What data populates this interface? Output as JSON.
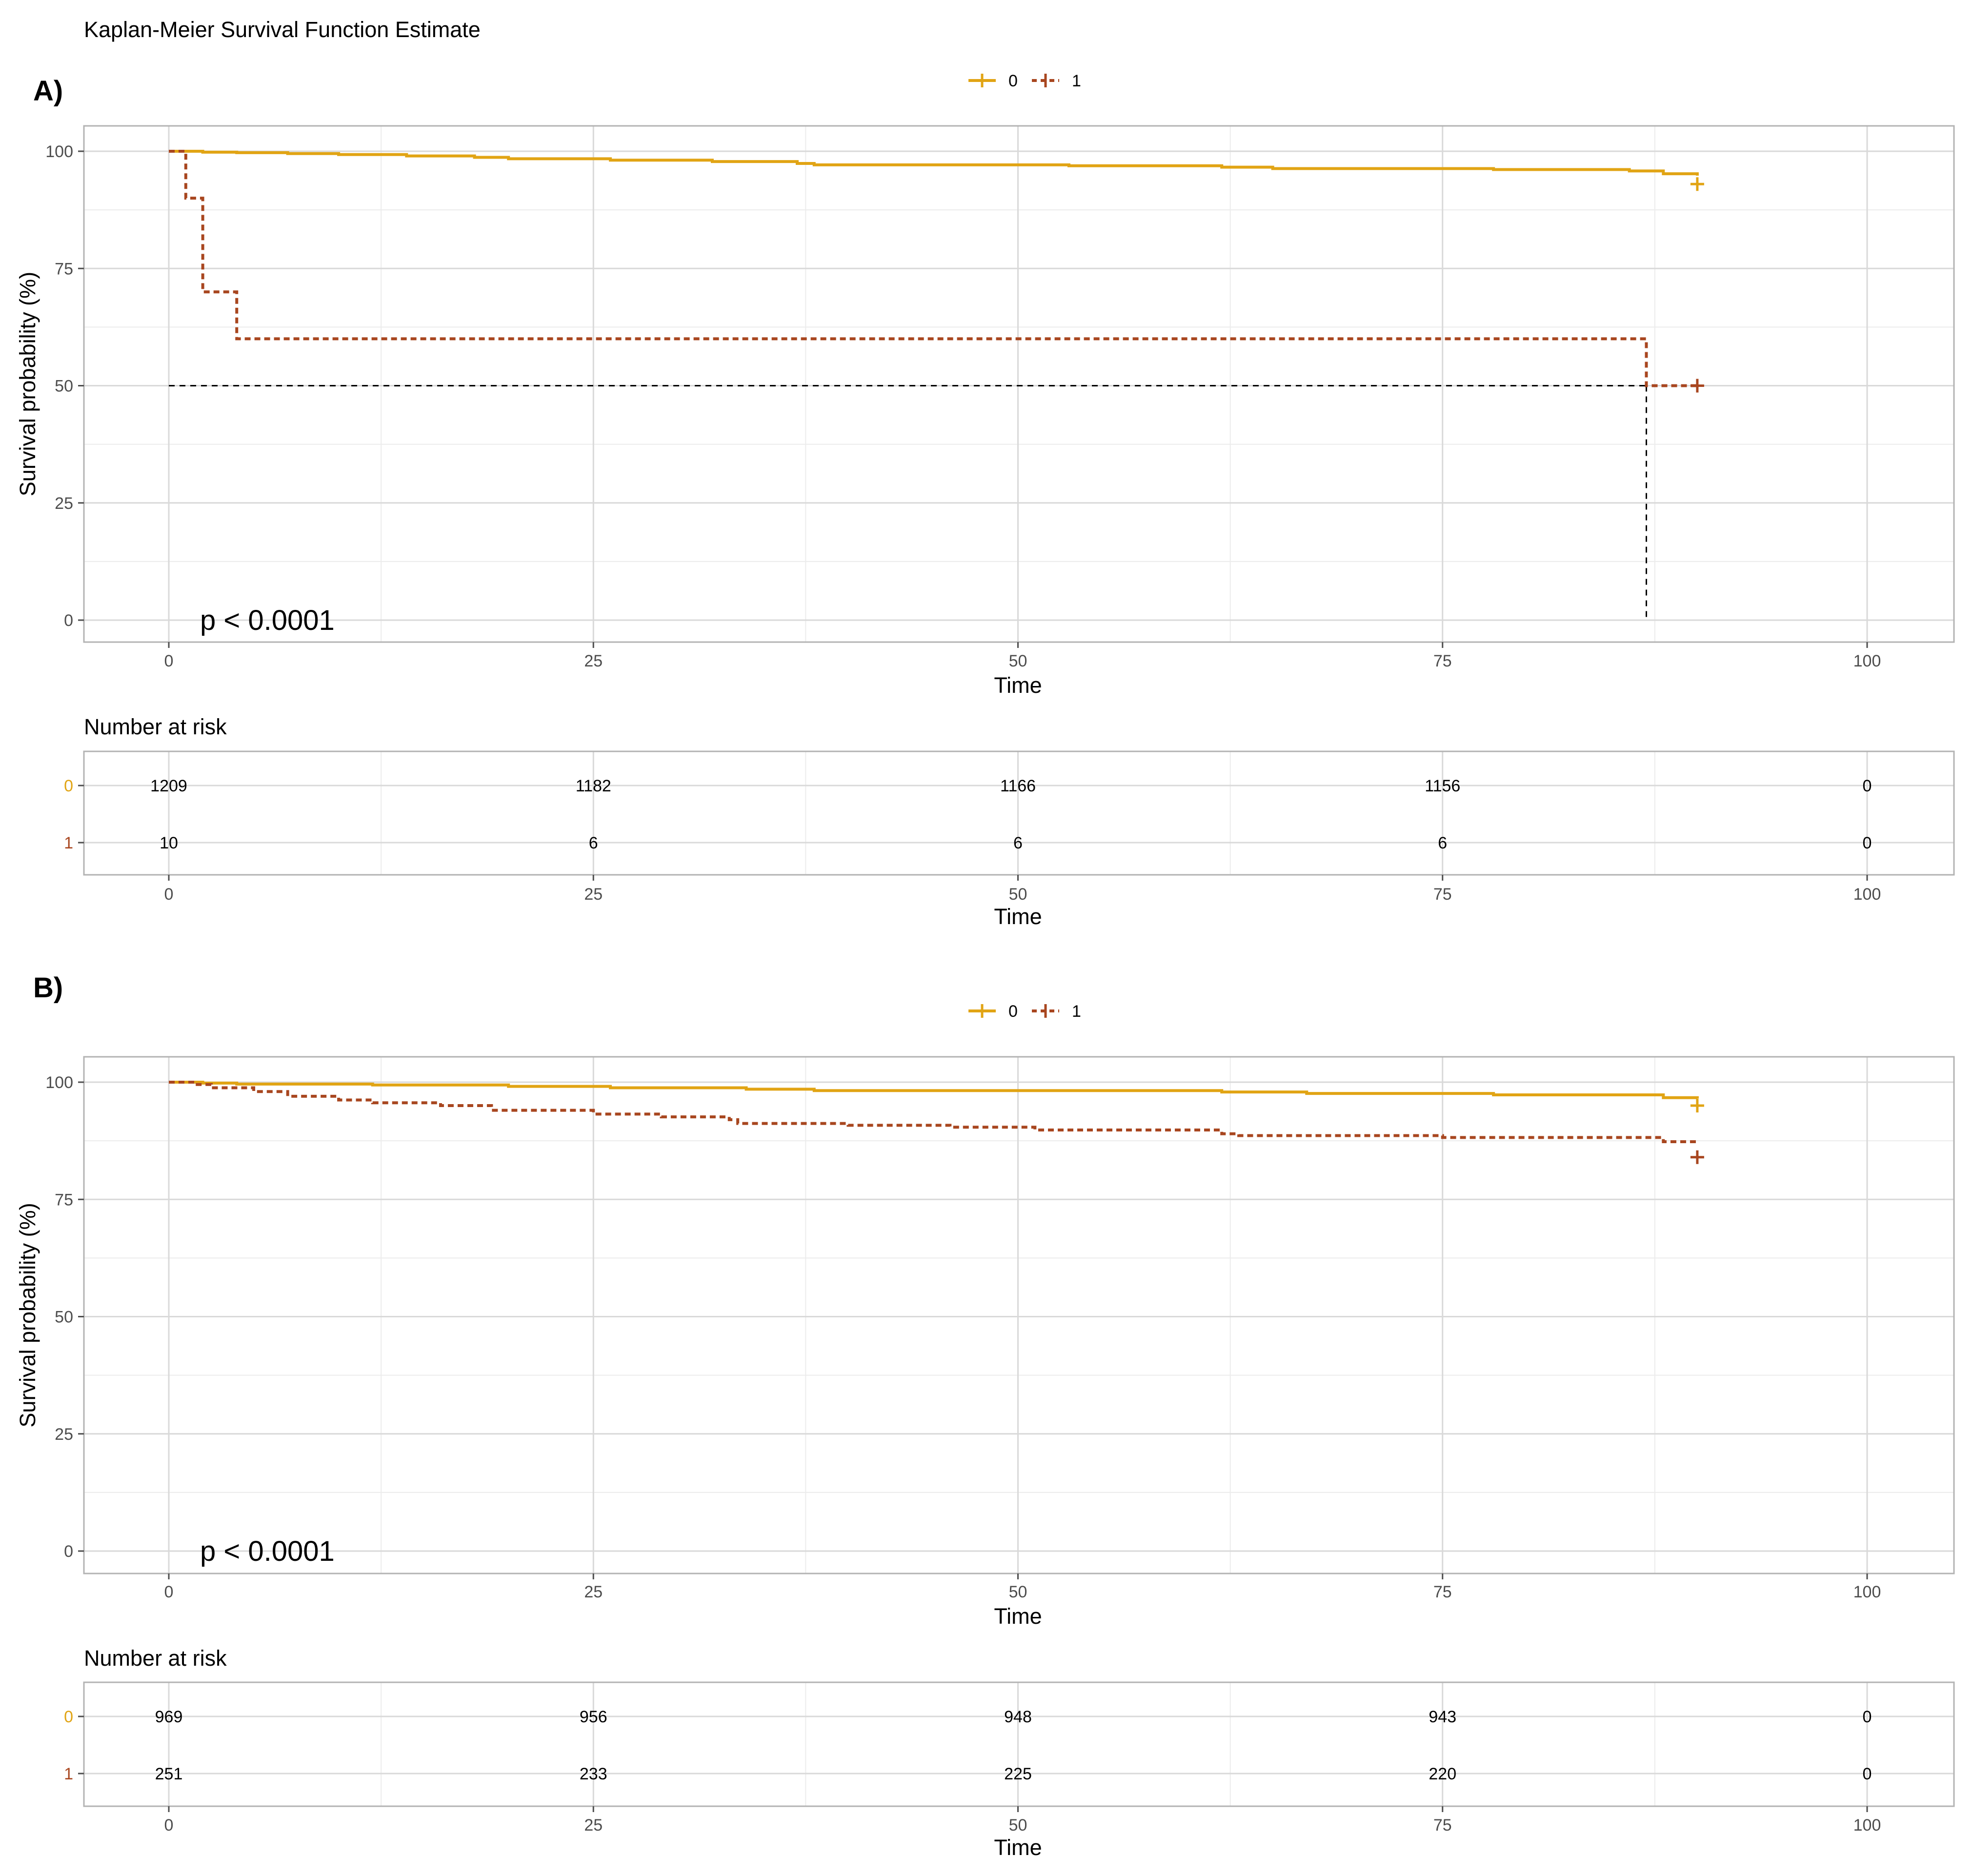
{
  "figure_title": "Kaplan-Meier Survival Function Estimate",
  "colors": {
    "stratum_0": "#E1A414",
    "stratum_1": "#A8461F",
    "median_line": "#000000"
  },
  "chart_data": [
    {
      "type": "line",
      "panel_label": "A)",
      "title": "Kaplan-Meier Survival Function Estimate",
      "xlabel": "Time",
      "ylabel": "Survival probability (%)",
      "xlim": [
        0,
        100
      ],
      "ylim": [
        0,
        100
      ],
      "x_ticks": [
        "0",
        "25",
        "50",
        "75",
        "100"
      ],
      "y_ticks": [
        "0",
        "25",
        "50",
        "75",
        "100"
      ],
      "grid": true,
      "legend": {
        "position": "top",
        "entries": [
          "0",
          "1"
        ]
      },
      "p_value": "p < 0.0001",
      "series": [
        {
          "name": "0",
          "color": "#E1A414",
          "line_style": "solid",
          "steps": [
            [
              0,
              100
            ],
            [
              1,
              100
            ],
            [
              2,
              99.8
            ],
            [
              4,
              99.7
            ],
            [
              7,
              99.5
            ],
            [
              10,
              99.3
            ],
            [
              14,
              99
            ],
            [
              18,
              98.7
            ],
            [
              20,
              98.4
            ],
            [
              26,
              98.1
            ],
            [
              32,
              97.8
            ],
            [
              37,
              97.4
            ],
            [
              38,
              97.1
            ],
            [
              53,
              96.9
            ],
            [
              62,
              96.6
            ],
            [
              65,
              96.3
            ],
            [
              78,
              96.1
            ],
            [
              86,
              95.8
            ],
            [
              88,
              95.2
            ],
            [
              90,
              94.8
            ]
          ],
          "censor_marks": [
            [
              90,
              93
            ]
          ]
        },
        {
          "name": "1",
          "color": "#A8461F",
          "line_style": "dashed",
          "steps": [
            [
              0,
              100
            ],
            [
              1,
              90
            ],
            [
              2,
              70
            ],
            [
              4,
              60
            ],
            [
              87,
              50
            ],
            [
              90,
              50
            ]
          ],
          "censor_marks": [
            [
              90,
              50
            ]
          ]
        }
      ],
      "median_survival": {
        "y": 50,
        "x_start": 0,
        "x_end": 87
      },
      "risk_table": {
        "title": "Number at risk",
        "xlabel": "Time",
        "strata": [
          "0",
          "1"
        ],
        "times": [
          0,
          25,
          50,
          75,
          100
        ],
        "rows": [
          {
            "stratum": "0",
            "values": [
              "1209",
              "1182",
              "1166",
              "1156",
              "0"
            ]
          },
          {
            "stratum": "1",
            "values": [
              "10",
              "6",
              "6",
              "6",
              "0"
            ]
          }
        ]
      }
    },
    {
      "type": "line",
      "panel_label": "B)",
      "xlabel": "Time",
      "ylabel": "Survival probability (%)",
      "xlim": [
        0,
        100
      ],
      "ylim": [
        0,
        100
      ],
      "x_ticks": [
        "0",
        "25",
        "50",
        "75",
        "100"
      ],
      "y_ticks": [
        "0",
        "25",
        "50",
        "75",
        "100"
      ],
      "grid": true,
      "legend": {
        "position": "top",
        "entries": [
          "0",
          "1"
        ]
      },
      "p_value": "p < 0.0001",
      "series": [
        {
          "name": "0",
          "color": "#E1A414",
          "line_style": "solid",
          "steps": [
            [
              0,
              100
            ],
            [
              2,
              99.8
            ],
            [
              4,
              99.6
            ],
            [
              12,
              99.4
            ],
            [
              20,
              99.1
            ],
            [
              26,
              98.8
            ],
            [
              34,
              98.5
            ],
            [
              38,
              98.2
            ],
            [
              62,
              97.9
            ],
            [
              67,
              97.6
            ],
            [
              78,
              97.3
            ],
            [
              88,
              96.7
            ],
            [
              90,
              96.5
            ]
          ],
          "censor_marks": [
            [
              90,
              95
            ]
          ]
        },
        {
          "name": "1",
          "color": "#A8461F",
          "line_style": "dashed",
          "steps": [
            [
              0,
              100
            ],
            [
              1.5,
              99.5
            ],
            [
              2.5,
              98.8
            ],
            [
              5,
              98
            ],
            [
              7,
              97
            ],
            [
              10,
              96.2
            ],
            [
              12,
              95.6
            ],
            [
              16,
              95
            ],
            [
              19,
              94
            ],
            [
              25,
              93.2
            ],
            [
              29,
              92.6
            ],
            [
              33,
              92
            ],
            [
              33.5,
              91.2
            ],
            [
              40,
              90.8
            ],
            [
              46,
              90.4
            ],
            [
              51,
              89.8
            ],
            [
              62,
              89
            ],
            [
              63,
              88.6
            ],
            [
              75,
              88.2
            ],
            [
              88,
              87.3
            ],
            [
              90,
              87.3
            ]
          ],
          "censor_marks": [
            [
              90,
              84
            ]
          ]
        }
      ],
      "risk_table": {
        "title": "Number at risk",
        "xlabel": "Time",
        "strata": [
          "0",
          "1"
        ],
        "times": [
          0,
          25,
          50,
          75,
          100
        ],
        "rows": [
          {
            "stratum": "0",
            "values": [
              "969",
              "956",
              "948",
              "943",
              "0"
            ]
          },
          {
            "stratum": "1",
            "values": [
              "251",
              "233",
              "225",
              "220",
              "0"
            ]
          }
        ]
      }
    }
  ]
}
